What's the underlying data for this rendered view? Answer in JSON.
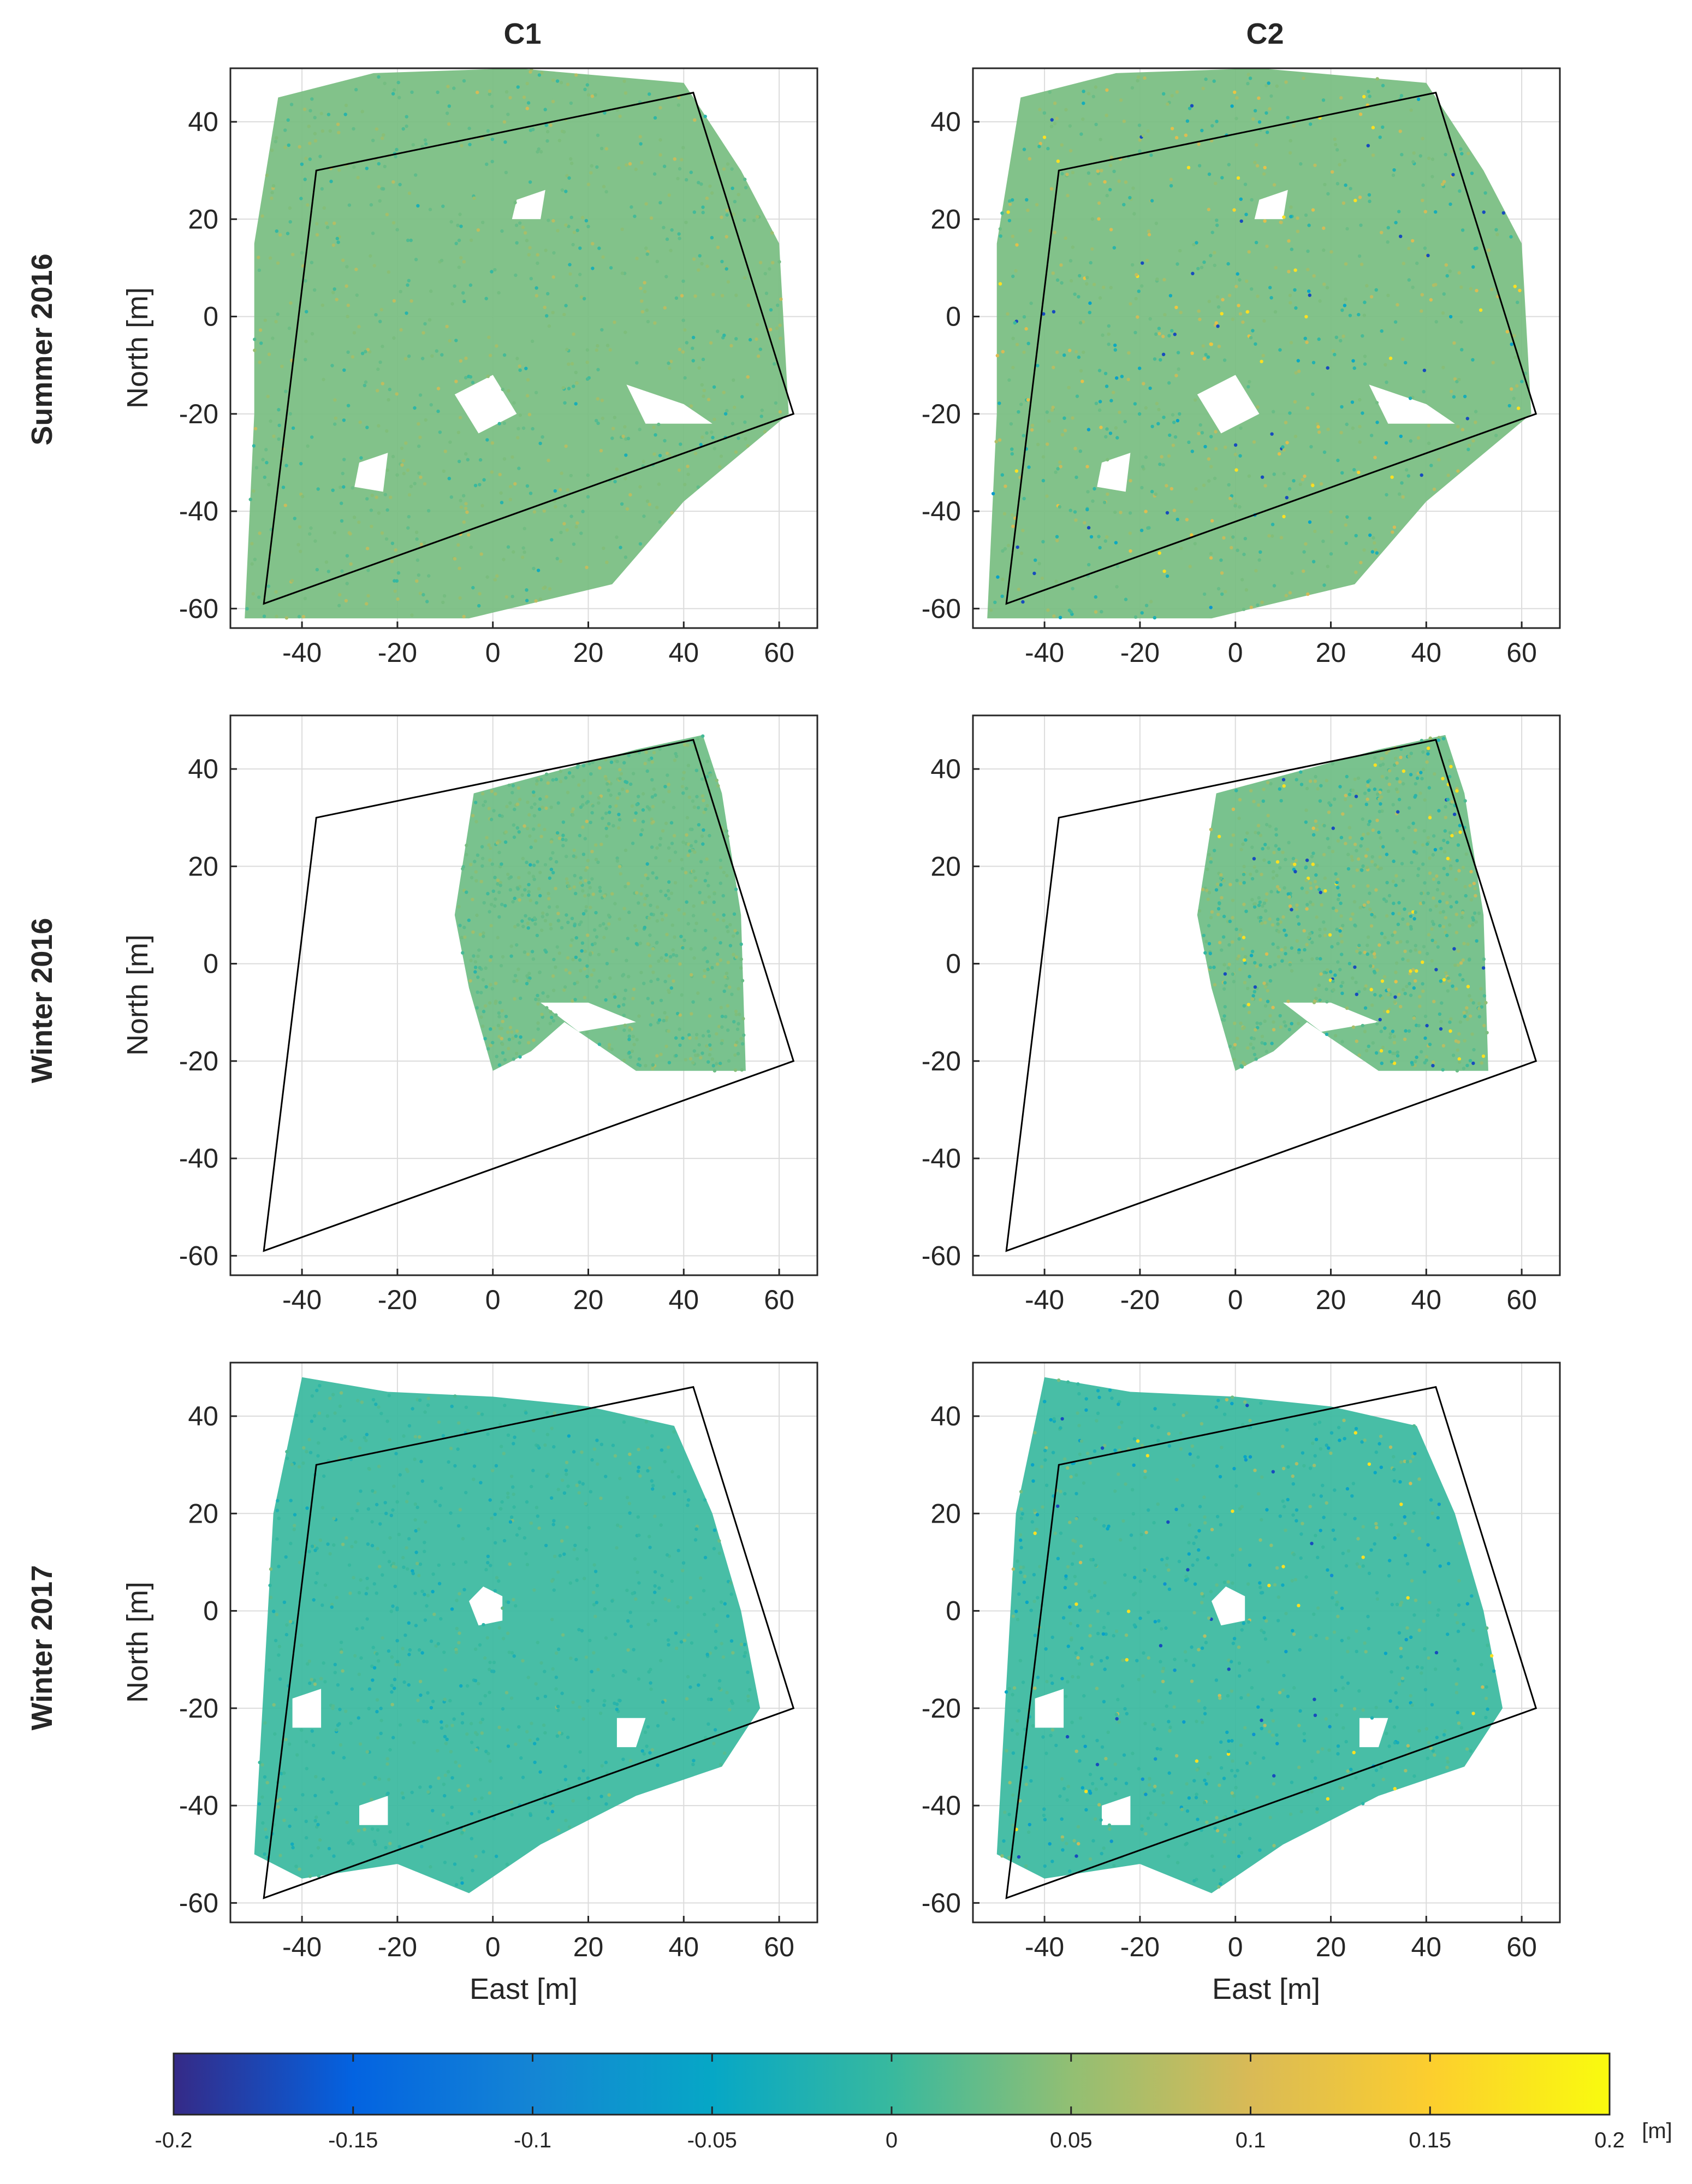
{
  "figure": {
    "column_titles": [
      "C1",
      "C2"
    ],
    "row_titles": [
      "Summer 2016",
      "Winter 2016",
      "Winter 2017"
    ],
    "colorbar": {
      "unit_label": "[m]",
      "range": [
        -0.2,
        0.2
      ],
      "tick_labels": [
        "-0.2",
        "-0.15",
        "-0.1",
        "-0.05",
        "0",
        "0.05",
        "0.1",
        "0.15",
        "0.2"
      ],
      "colormap": [
        "#352a87",
        "#0363e1",
        "#1485d4",
        "#06a7c6",
        "#38b99e",
        "#92bf73",
        "#d9ba56",
        "#fcce2e",
        "#f9fb0e"
      ]
    }
  },
  "chart_data": [
    {
      "type": "scatter",
      "row": "Summer 2016",
      "column": "C1",
      "xlabel": "",
      "ylabel": "North [m]",
      "xlim": [
        -55,
        68
      ],
      "ylim": [
        -64,
        51
      ],
      "xticks": [
        "-40",
        "-20",
        "0",
        "20",
        "40",
        "60"
      ],
      "yticks": [
        "40",
        "20",
        "0",
        "-20",
        "-40",
        "-60"
      ],
      "grid": true,
      "polygon": [
        [
          -37,
          30
        ],
        [
          42,
          46
        ],
        [
          63,
          -20
        ],
        [
          -48,
          -59
        ]
      ],
      "coverage": "summer",
      "error_level": "low"
    },
    {
      "type": "scatter",
      "row": "Summer 2016",
      "column": "C2",
      "xlabel": "",
      "ylabel": "",
      "xlim": [
        -55,
        68
      ],
      "ylim": [
        -64,
        51
      ],
      "xticks": [
        "-40",
        "-20",
        "0",
        "20",
        "40",
        "60"
      ],
      "yticks": [
        "40",
        "20",
        "0",
        "-20",
        "-40",
        "-60"
      ],
      "grid": true,
      "polygon": [
        [
          -37,
          30
        ],
        [
          42,
          46
        ],
        [
          63,
          -20
        ],
        [
          -48,
          -59
        ]
      ],
      "coverage": "summer",
      "error_level": "high"
    },
    {
      "type": "scatter",
      "row": "Winter 2016",
      "column": "C1",
      "xlabel": "",
      "ylabel": "North [m]",
      "xlim": [
        -55,
        68
      ],
      "ylim": [
        -64,
        51
      ],
      "xticks": [
        "-40",
        "-20",
        "0",
        "20",
        "40",
        "60"
      ],
      "yticks": [
        "40",
        "20",
        "0",
        "-20",
        "-40",
        "-60"
      ],
      "grid": true,
      "polygon": [
        [
          -37,
          30
        ],
        [
          42,
          46
        ],
        [
          63,
          -20
        ],
        [
          -48,
          -59
        ]
      ],
      "coverage": "winter2016",
      "error_level": "low"
    },
    {
      "type": "scatter",
      "row": "Winter 2016",
      "column": "C2",
      "xlabel": "",
      "ylabel": "",
      "xlim": [
        -55,
        68
      ],
      "ylim": [
        -64,
        51
      ],
      "xticks": [
        "-40",
        "-20",
        "0",
        "20",
        "40",
        "60"
      ],
      "yticks": [
        "40",
        "20",
        "0",
        "-20",
        "-40",
        "-60"
      ],
      "grid": true,
      "polygon": [
        [
          -37,
          30
        ],
        [
          42,
          46
        ],
        [
          63,
          -20
        ],
        [
          -48,
          -59
        ]
      ],
      "coverage": "winter2016",
      "error_level": "high"
    },
    {
      "type": "scatter",
      "row": "Winter 2017",
      "column": "C1",
      "xlabel": "East [m]",
      "ylabel": "North [m]",
      "xlim": [
        -55,
        68
      ],
      "ylim": [
        -64,
        51
      ],
      "xticks": [
        "-40",
        "-20",
        "0",
        "20",
        "40",
        "60"
      ],
      "yticks": [
        "40",
        "20",
        "0",
        "-20",
        "-40",
        "-60"
      ],
      "grid": true,
      "polygon": [
        [
          -37,
          30
        ],
        [
          42,
          46
        ],
        [
          63,
          -20
        ],
        [
          -48,
          -59
        ]
      ],
      "coverage": "winter2017",
      "error_level": "low"
    },
    {
      "type": "scatter",
      "row": "Winter 2017",
      "column": "C2",
      "xlabel": "East [m]",
      "ylabel": "",
      "xlim": [
        -55,
        68
      ],
      "ylim": [
        -64,
        51
      ],
      "xticks": [
        "-40",
        "-20",
        "0",
        "20",
        "40",
        "60"
      ],
      "yticks": [
        "40",
        "20",
        "0",
        "-20",
        "-40",
        "-60"
      ],
      "grid": true,
      "polygon": [
        [
          -37,
          30
        ],
        [
          42,
          46
        ],
        [
          63,
          -20
        ],
        [
          -48,
          -59
        ]
      ],
      "coverage": "winter2017",
      "error_level": "high"
    }
  ]
}
